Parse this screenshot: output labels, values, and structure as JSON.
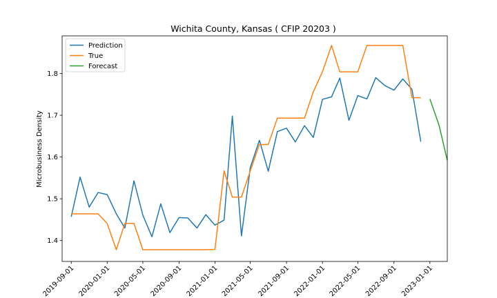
{
  "chart_data": {
    "type": "line",
    "title": "Wichita County, Kansas ( CFIP 20203 )",
    "xlabel": "",
    "ylabel": "Microbusiness Density",
    "xlim": [
      "2019-08-01",
      "2023-03-01"
    ],
    "ylim": [
      1.35,
      1.89
    ],
    "x_ticks": [
      "2019-09-01",
      "2020-01-01",
      "2020-05-01",
      "2020-09-01",
      "2021-01-01",
      "2021-05-01",
      "2021-09-01",
      "2022-01-01",
      "2022-05-01",
      "2022-09-01",
      "2023-01-01"
    ],
    "y_ticks": [
      1.4,
      1.5,
      1.6,
      1.7,
      1.8
    ],
    "y_tick_labels": [
      "1.4",
      "1.5",
      "1.6",
      "1.7",
      "1.8"
    ],
    "legend_position": "upper-left",
    "grid": false,
    "series": [
      {
        "name": "Prediction",
        "color": "#1f77b4",
        "points": [
          [
            "2019-09-01",
            1.457
          ],
          [
            "2019-10-01",
            1.552
          ],
          [
            "2019-11-01",
            1.48
          ],
          [
            "2019-12-01",
            1.515
          ],
          [
            "2020-01-01",
            1.51
          ],
          [
            "2020-02-01",
            1.464
          ],
          [
            "2020-03-01",
            1.43
          ],
          [
            "2020-04-01",
            1.543
          ],
          [
            "2020-05-01",
            1.461
          ],
          [
            "2020-06-01",
            1.409
          ],
          [
            "2020-07-01",
            1.488
          ],
          [
            "2020-08-01",
            1.419
          ],
          [
            "2020-09-01",
            1.455
          ],
          [
            "2020-10-01",
            1.454
          ],
          [
            "2020-11-01",
            1.43
          ],
          [
            "2020-12-01",
            1.462
          ],
          [
            "2021-01-01",
            1.437
          ],
          [
            "2021-02-01",
            1.449
          ],
          [
            "2021-03-01",
            1.698
          ],
          [
            "2021-04-01",
            1.411
          ],
          [
            "2021-05-01",
            1.575
          ],
          [
            "2021-06-01",
            1.64
          ],
          [
            "2021-07-01",
            1.566
          ],
          [
            "2021-08-01",
            1.661
          ],
          [
            "2021-09-01",
            1.669
          ],
          [
            "2021-10-01",
            1.636
          ],
          [
            "2021-11-01",
            1.675
          ],
          [
            "2021-12-01",
            1.647
          ],
          [
            "2022-01-01",
            1.738
          ],
          [
            "2022-02-01",
            1.744
          ],
          [
            "2022-03-01",
            1.789
          ],
          [
            "2022-04-01",
            1.688
          ],
          [
            "2022-05-01",
            1.747
          ],
          [
            "2022-06-01",
            1.739
          ],
          [
            "2022-07-01",
            1.79
          ],
          [
            "2022-08-01",
            1.771
          ],
          [
            "2022-09-01",
            1.76
          ],
          [
            "2022-10-01",
            1.787
          ],
          [
            "2022-11-01",
            1.762
          ],
          [
            "2022-12-01",
            1.637
          ]
        ]
      },
      {
        "name": "True",
        "color": "#ff7f0e",
        "points": [
          [
            "2019-09-01",
            1.464
          ],
          [
            "2019-10-01",
            1.464
          ],
          [
            "2019-11-01",
            1.464
          ],
          [
            "2019-12-01",
            1.464
          ],
          [
            "2020-01-01",
            1.441
          ],
          [
            "2020-02-01",
            1.378
          ],
          [
            "2020-03-01",
            1.441
          ],
          [
            "2020-04-01",
            1.441
          ],
          [
            "2020-05-01",
            1.378
          ],
          [
            "2020-06-01",
            1.378
          ],
          [
            "2020-07-01",
            1.378
          ],
          [
            "2020-08-01",
            1.378
          ],
          [
            "2020-09-01",
            1.378
          ],
          [
            "2020-10-01",
            1.378
          ],
          [
            "2020-11-01",
            1.378
          ],
          [
            "2020-12-01",
            1.378
          ],
          [
            "2021-01-01",
            1.379
          ],
          [
            "2021-02-01",
            1.567
          ],
          [
            "2021-03-01",
            1.504
          ],
          [
            "2021-04-01",
            1.504
          ],
          [
            "2021-05-01",
            1.567
          ],
          [
            "2021-06-01",
            1.63
          ],
          [
            "2021-07-01",
            1.63
          ],
          [
            "2021-08-01",
            1.693
          ],
          [
            "2021-09-01",
            1.693
          ],
          [
            "2021-10-01",
            1.693
          ],
          [
            "2021-11-01",
            1.693
          ],
          [
            "2021-12-01",
            1.756
          ],
          [
            "2022-01-01",
            1.804
          ],
          [
            "2022-02-01",
            1.867
          ],
          [
            "2022-03-01",
            1.804
          ],
          [
            "2022-04-01",
            1.804
          ],
          [
            "2022-05-01",
            1.804
          ],
          [
            "2022-06-01",
            1.867
          ],
          [
            "2022-07-01",
            1.867
          ],
          [
            "2022-08-01",
            1.867
          ],
          [
            "2022-09-01",
            1.867
          ],
          [
            "2022-10-01",
            1.867
          ],
          [
            "2022-11-01",
            1.742
          ],
          [
            "2022-12-01",
            1.742
          ]
        ]
      },
      {
        "name": "Forecast",
        "color": "#2ca02c",
        "points": [
          [
            "2023-01-01",
            1.739
          ],
          [
            "2023-02-01",
            1.676
          ],
          [
            "2023-03-01",
            1.592
          ]
        ]
      }
    ]
  }
}
